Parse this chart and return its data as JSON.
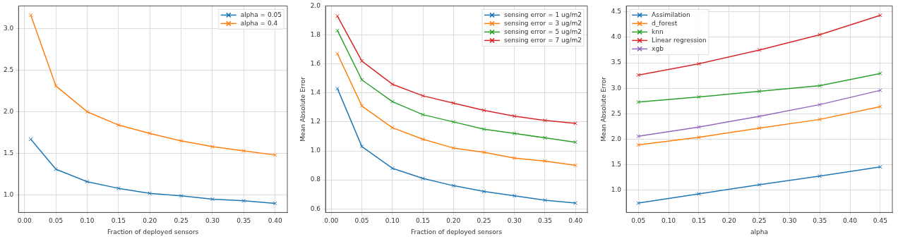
{
  "chart_data": [
    {
      "type": "line",
      "xlabel": "Fraction of deployed sensors",
      "x": [
        0.01,
        0.05,
        0.1,
        0.15,
        0.2,
        0.25,
        0.3,
        0.35,
        0.4
      ],
      "series": [
        {
          "name": "alpha = 0.05",
          "color": "#1f77b4",
          "values": [
            1.67,
            1.31,
            1.16,
            1.08,
            1.02,
            0.99,
            0.95,
            0.93,
            0.9
          ]
        },
        {
          "name": "alpha = 0.4",
          "color": "#ff7f0e",
          "values": [
            3.16,
            2.31,
            2.0,
            1.84,
            1.74,
            1.65,
            1.58,
            1.53,
            1.48
          ]
        }
      ],
      "xlim": [
        -0.0095,
        0.4195
      ],
      "xticks": [
        {
          "value": 0,
          "label": "0.00"
        },
        {
          "value": 0.05,
          "label": "0.05"
        },
        {
          "value": 0.1,
          "label": "0.10"
        },
        {
          "value": 0.15,
          "label": "0.15"
        },
        {
          "value": 0.2,
          "label": "0.20"
        },
        {
          "value": 0.25,
          "label": "0.25"
        },
        {
          "value": 0.3,
          "label": "0.30"
        },
        {
          "value": 0.35,
          "label": "0.35"
        },
        {
          "value": 0.4,
          "label": "0.40"
        }
      ],
      "ylim": [
        0.79,
        3.27
      ],
      "yticks": [
        {
          "value": 1,
          "label": "1.0"
        },
        1.5,
        {
          "value": 2,
          "label": "2.0"
        },
        2.5,
        {
          "value": 3,
          "label": "3.0"
        }
      ],
      "grid": true,
      "legend": "top right",
      "marker": "cross",
      "line_style": "solid"
    },
    {
      "type": "line",
      "xlabel": "Fraction of deployed sensors",
      "ylabel": "Mean Absolute Error",
      "x": [
        0.01,
        0.05,
        0.1,
        0.15,
        0.2,
        0.25,
        0.3,
        0.35,
        0.4
      ],
      "series": [
        {
          "name": "sensing error = 1 ug/m2",
          "color": "#1f77b4",
          "values": [
            1.43,
            1.03,
            0.88,
            0.81,
            0.76,
            0.72,
            0.69,
            0.66,
            0.64
          ]
        },
        {
          "name": "sensing error = 3 ug/m2",
          "color": "#ff7f0e",
          "values": [
            1.67,
            1.31,
            1.16,
            1.08,
            1.02,
            0.99,
            0.95,
            0.93,
            0.9
          ]
        },
        {
          "name": "sensing error = 5 ug/m2",
          "color": "#2ca02c",
          "values": [
            1.83,
            1.49,
            1.34,
            1.25,
            1.2,
            1.15,
            1.12,
            1.09,
            1.06
          ]
        },
        {
          "name": "sensing error = 7 ug/m2",
          "color": "#d62728",
          "values": [
            1.93,
            1.62,
            1.46,
            1.38,
            1.33,
            1.28,
            1.24,
            1.21,
            1.19
          ]
        }
      ],
      "xlim": [
        -0.0095,
        0.4195
      ],
      "xticks": [
        {
          "value": 0,
          "label": "0.00"
        },
        {
          "value": 0.05,
          "label": "0.05"
        },
        {
          "value": 0.1,
          "label": "0.10"
        },
        {
          "value": 0.15,
          "label": "0.15"
        },
        {
          "value": 0.2,
          "label": "0.20"
        },
        {
          "value": 0.25,
          "label": "0.25"
        },
        {
          "value": 0.3,
          "label": "0.30"
        },
        {
          "value": 0.35,
          "label": "0.35"
        },
        {
          "value": 0.4,
          "label": "0.40"
        }
      ],
      "ylim": [
        0.575,
        2.0
      ],
      "yticks": [
        0.6,
        0.8,
        {
          "value": 1,
          "label": "1.0"
        },
        1.2,
        1.4,
        1.6,
        1.8,
        {
          "value": 2,
          "label": "2.0"
        }
      ],
      "grid": true,
      "legend": "top right",
      "marker": "cross",
      "line_style": "solid"
    },
    {
      "type": "line",
      "xlabel": "alpha",
      "ylabel": "Mean Absolute Error",
      "x": [
        0.05,
        0.15,
        0.25,
        0.35,
        0.45
      ],
      "series": [
        {
          "name": "Assimilation",
          "color": "#1f77b4",
          "values": [
            0.75,
            0.93,
            1.11,
            1.28,
            1.46
          ]
        },
        {
          "name": "d_forest",
          "color": "#ff7f0e",
          "values": [
            1.89,
            2.04,
            2.22,
            2.39,
            2.64
          ]
        },
        {
          "name": "knn",
          "color": "#2ca02c",
          "values": [
            2.73,
            2.83,
            2.94,
            3.05,
            3.29
          ]
        },
        {
          "name": "Linear regression",
          "color": "#d62728",
          "values": [
            3.26,
            3.48,
            3.75,
            4.05,
            4.43
          ]
        },
        {
          "name": "xgb",
          "color": "#9467bd",
          "values": [
            2.06,
            2.24,
            2.45,
            2.68,
            2.96
          ]
        }
      ],
      "xlim": [
        0.03,
        0.47
      ],
      "xticks": [
        0.05,
        {
          "value": 0.1,
          "label": "0.10"
        },
        0.15,
        {
          "value": 0.2,
          "label": "0.20"
        },
        0.25,
        {
          "value": 0.3,
          "label": "0.30"
        },
        0.35,
        {
          "value": 0.4,
          "label": "0.40"
        },
        0.45
      ],
      "ylim": [
        0.566,
        4.614
      ],
      "yticks": [
        {
          "value": 1,
          "label": "1.0"
        },
        1.5,
        {
          "value": 2,
          "label": "2.0"
        },
        2.5,
        {
          "value": 3,
          "label": "3.0"
        },
        3.5,
        {
          "value": 4,
          "label": "4.0"
        },
        4.5
      ],
      "grid": true,
      "legend": "top left",
      "marker": "cross",
      "line_style": "solid"
    }
  ]
}
